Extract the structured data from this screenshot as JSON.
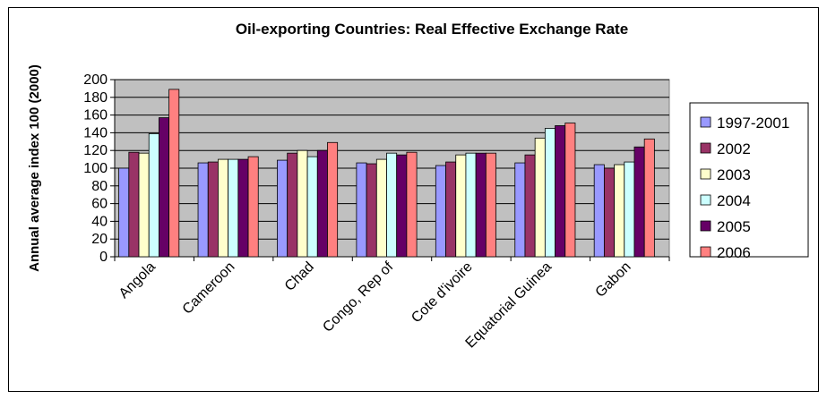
{
  "chart_data": {
    "type": "bar",
    "title": "Oil-exporting Countries: Real Effective Exchange Rate",
    "xlabel": "",
    "ylabel": "Annual average index 100 (2000)",
    "ylim": [
      0,
      200
    ],
    "yticks": [
      0,
      20,
      40,
      60,
      80,
      100,
      120,
      140,
      160,
      180,
      200
    ],
    "categories": [
      "Angola",
      "Cameroon",
      "Chad",
      "Congo, Rep of",
      "Cote d'ivoire",
      "Equatorial Guinea",
      "Gabon"
    ],
    "grid": true,
    "legend_position": "right",
    "series": [
      {
        "name": "1997-2001",
        "color": "#9999ff",
        "values": [
          100,
          106,
          109,
          106,
          103,
          106,
          104
        ]
      },
      {
        "name": "2002",
        "color": "#993366",
        "values": [
          118,
          107,
          117,
          105,
          107,
          115,
          100
        ]
      },
      {
        "name": "2003",
        "color": "#ffffcc",
        "values": [
          117,
          110,
          120,
          110,
          115,
          134,
          104
        ]
      },
      {
        "name": "2004",
        "color": "#ccffff",
        "values": [
          139,
          110,
          113,
          117,
          117,
          145,
          107
        ]
      },
      {
        "name": "2005",
        "color": "#660066",
        "values": [
          157,
          110,
          120,
          115,
          117,
          148,
          124
        ]
      },
      {
        "name": "2006",
        "color": "#ff8080",
        "values": [
          189,
          113,
          129,
          118,
          117,
          151,
          133
        ]
      }
    ]
  }
}
